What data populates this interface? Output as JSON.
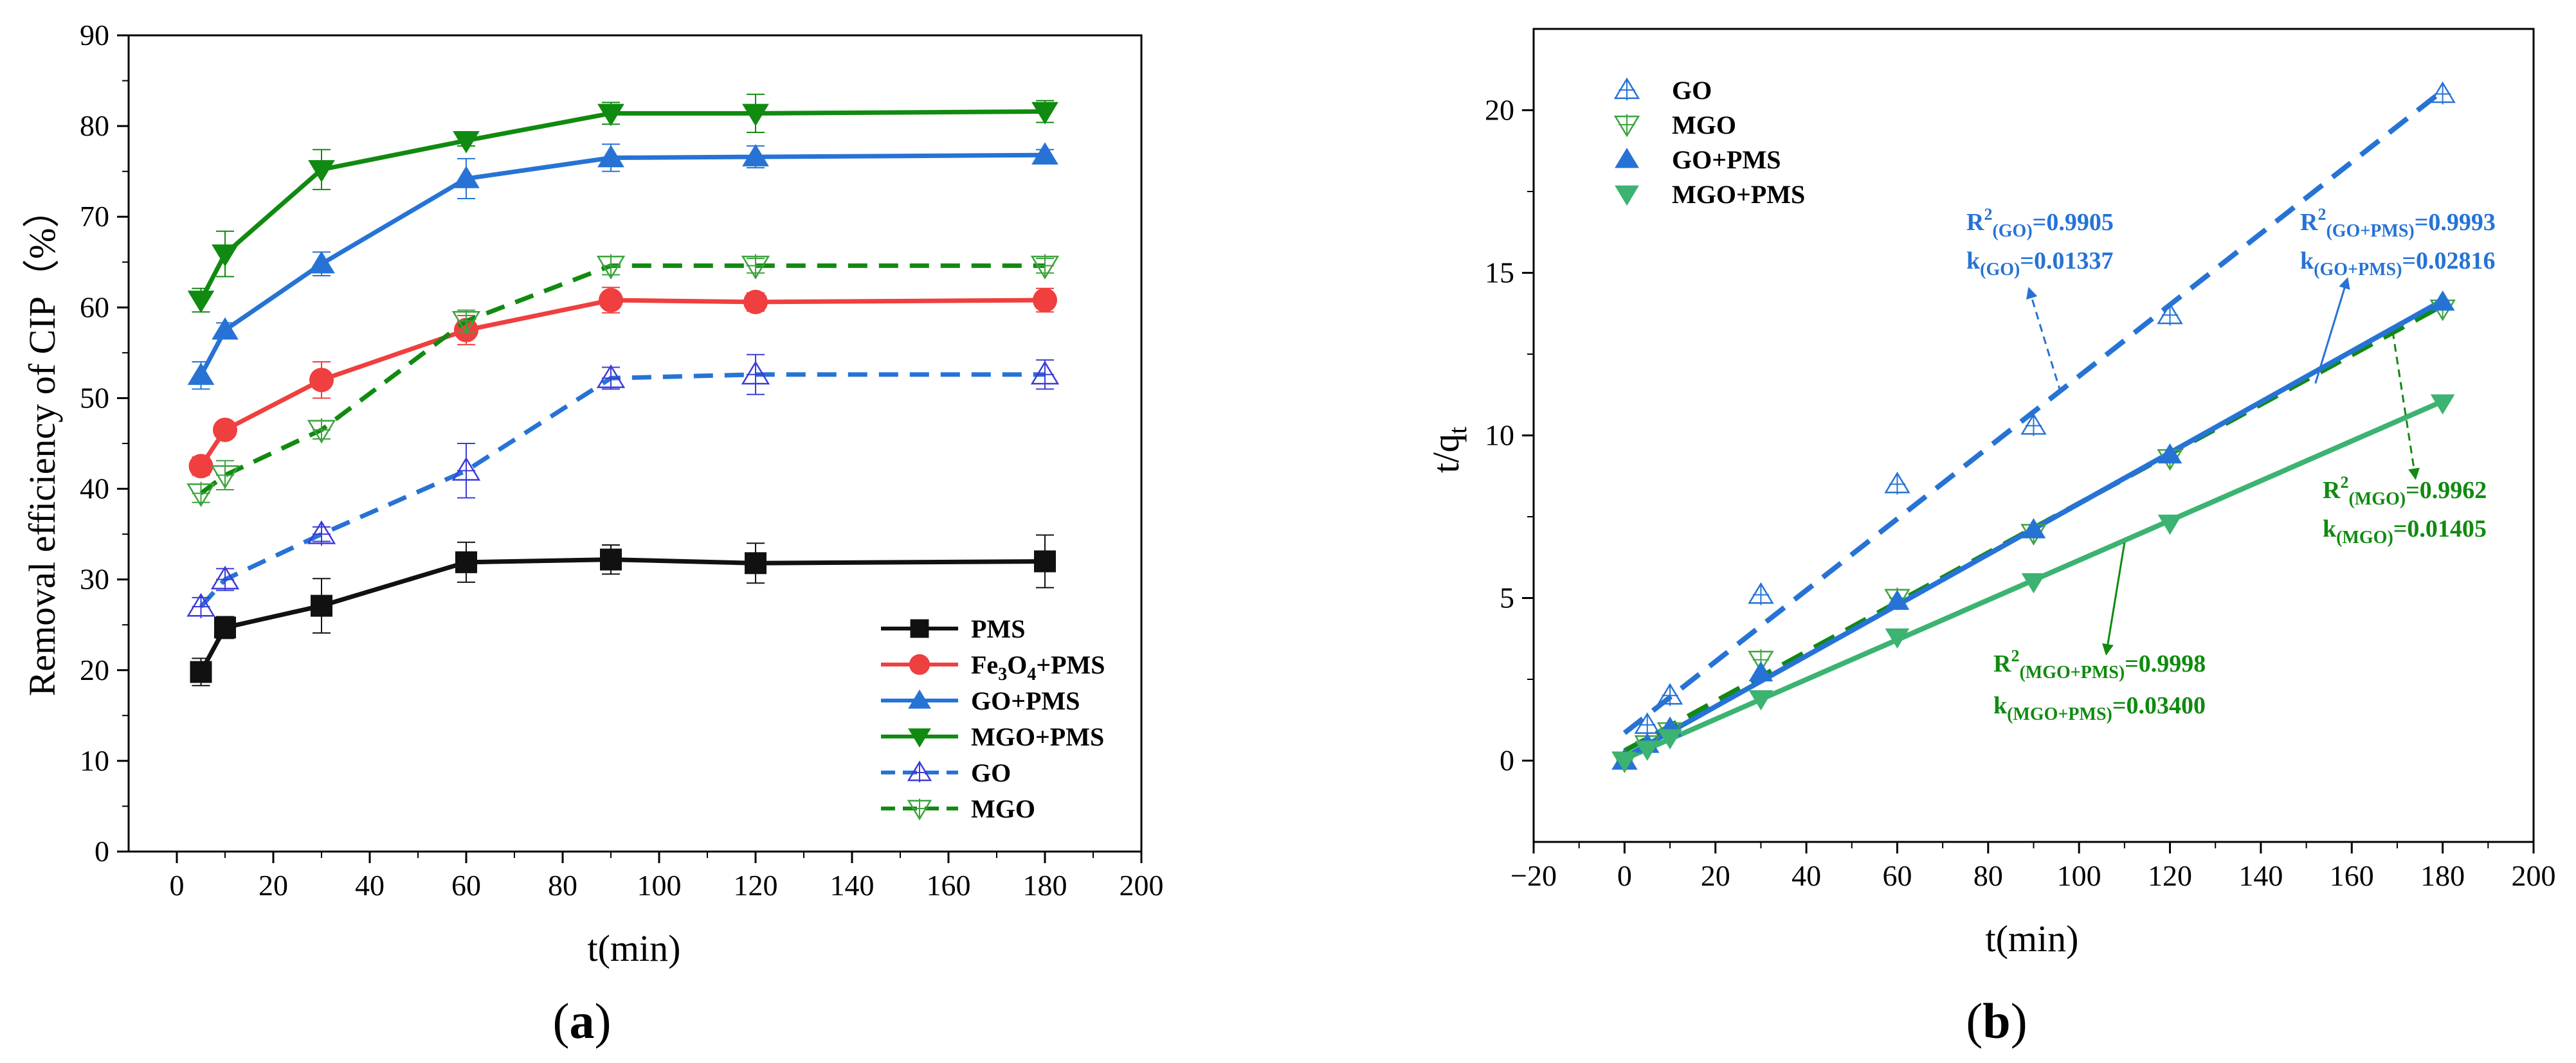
{
  "figure": {
    "panel_a_label": "(a)",
    "panel_b_label": "(b)",
    "panel_a_letter": "a",
    "panel_b_letter": "b"
  },
  "chart_data": [
    {
      "id": "a",
      "type": "line",
      "title": "",
      "xlabel": "t(min)",
      "ylabel": "Removal efficiency of CIP（%）",
      "xlim": [
        -10,
        200
      ],
      "ylim": [
        0,
        90
      ],
      "xticks": [
        0,
        20,
        40,
        60,
        80,
        100,
        120,
        140,
        160,
        180,
        200
      ],
      "yticks": [
        0,
        10,
        20,
        30,
        40,
        50,
        60,
        70,
        80,
        90
      ],
      "grid": false,
      "legend_position": "bottom-right",
      "x": [
        5,
        10,
        30,
        60,
        90,
        120,
        180
      ],
      "series": [
        {
          "name": "PMS",
          "label_main": "PMS",
          "color": "#111111",
          "marker": "square",
          "line": "solid",
          "values": [
            19.8,
            24.7,
            27.1,
            31.9,
            32.2,
            31.8,
            32.0
          ],
          "errors": [
            1.5,
            1.2,
            3.0,
            2.2,
            1.6,
            2.2,
            2.9
          ]
        },
        {
          "name": "Fe3O4+PMS",
          "label_main": "Fe",
          "label_sub1": "3",
          "label_mid": "O",
          "label_sub2": "4",
          "label_tail": "+PMS",
          "color": "#ef3f3f",
          "marker": "circle",
          "line": "solid",
          "values": [
            42.5,
            46.5,
            52.0,
            57.5,
            60.8,
            60.6,
            60.8
          ],
          "errors": [
            1.0,
            0.8,
            2.0,
            1.6,
            1.4,
            1.0,
            1.3
          ]
        },
        {
          "name": "GO+PMS",
          "label_main": "GO+PMS",
          "color": "#2673d5",
          "marker": "triangle-up",
          "line": "solid",
          "values": [
            52.5,
            57.5,
            64.8,
            74.2,
            76.5,
            76.6,
            76.8
          ],
          "errors": [
            1.5,
            0.8,
            1.3,
            2.2,
            1.5,
            1.2,
            0.6
          ]
        },
        {
          "name": "MGO+PMS",
          "label_main": "MGO+PMS",
          "color": "#108a10",
          "marker": "triangle-down",
          "line": "solid",
          "values": [
            60.8,
            65.9,
            75.2,
            78.4,
            81.4,
            81.4,
            81.6
          ],
          "errors": [
            1.3,
            2.5,
            2.2,
            0.6,
            1.2,
            2.1,
            1.2
          ]
        },
        {
          "name": "GO",
          "label_main": "GO",
          "color": "#3b3bd9",
          "line_color": "#2673d5",
          "marker": "triangle-up-open",
          "line": "dashed",
          "values": [
            27.0,
            30.0,
            35.0,
            42.0,
            52.2,
            52.6,
            52.6
          ],
          "errors": [
            1.0,
            1.2,
            0.8,
            3.0,
            1.2,
            2.2,
            1.6
          ]
        },
        {
          "name": "MGO",
          "label_main": "MGO",
          "color": "#3da33d",
          "line_color": "#108a10",
          "marker": "triangle-down-open",
          "line": "dashed",
          "values": [
            39.5,
            41.5,
            46.5,
            58.5,
            64.6,
            64.6,
            64.6
          ],
          "errors": [
            1.0,
            1.6,
            1.0,
            1.2,
            1.0,
            0.8,
            0.8
          ]
        }
      ]
    },
    {
      "id": "b",
      "type": "scatter",
      "title": "",
      "xlabel": "t(min)",
      "ylabel_main": "t/q",
      "ylabel_sub": "t",
      "xlim": [
        -20,
        200
      ],
      "ylim": [
        -2.5,
        22.5
      ],
      "xticks": [
        -20,
        0,
        20,
        40,
        60,
        80,
        100,
        120,
        140,
        160,
        180,
        200
      ],
      "yticks": [
        0,
        5,
        10,
        15,
        20
      ],
      "grid": false,
      "legend_position": "top-left",
      "series": [
        {
          "name": "GO",
          "color": "#2673d5",
          "marker": "triangle-up-open",
          "x": [
            0,
            5,
            10,
            30,
            60,
            90,
            120,
            180
          ],
          "y": [
            0,
            1.1,
            2.0,
            5.1,
            8.5,
            10.3,
            13.7,
            20.5
          ],
          "fit": {
            "x": [
              0,
              180
            ],
            "y": [
              0.85,
              20.6
            ],
            "style": "dashed",
            "color": "#2673d5"
          }
        },
        {
          "name": "MGO",
          "color": "#3da33d",
          "marker": "triangle-down-open",
          "x": [
            0,
            5,
            10,
            30,
            60,
            90,
            120,
            180
          ],
          "y": [
            0,
            0.5,
            0.9,
            3.1,
            5.0,
            7.0,
            9.3,
            13.9
          ],
          "fit": {
            "x": [
              0,
              180
            ],
            "y": [
              0.3,
              14.0
            ],
            "style": "dashed",
            "color": "#108a10"
          }
        },
        {
          "name": "GO+PMS",
          "color": "#2673d5",
          "marker": "triangle-up",
          "x": [
            0,
            5,
            10,
            30,
            60,
            90,
            120,
            180
          ],
          "y": [
            0,
            0.5,
            1.0,
            2.7,
            4.9,
            7.1,
            9.4,
            14.1
          ],
          "fit": {
            "x": [
              0,
              180
            ],
            "y": [
              0.1,
              14.15
            ],
            "style": "solid",
            "color": "#2673d5"
          }
        },
        {
          "name": "MGO+PMS",
          "color": "#3cb371",
          "marker": "triangle-down",
          "x": [
            0,
            5,
            10,
            30,
            60,
            90,
            120,
            180
          ],
          "y": [
            0,
            0.35,
            0.7,
            1.9,
            3.8,
            5.5,
            7.3,
            11.0
          ],
          "fit": {
            "x": [
              0,
              180
            ],
            "y": [
              0.05,
              11.05
            ],
            "style": "solid",
            "color": "#3cb371"
          }
        }
      ],
      "annotations": [
        {
          "id": "go",
          "color": "#2673d5",
          "r2_main": "R",
          "r2_sup": "2",
          "r2_sub": "(GO)",
          "r2_value": "=0.9905",
          "k_main": "k",
          "k_sub": "(GO)",
          "k_value": "=0.01337"
        },
        {
          "id": "gopms",
          "color": "#2673d5",
          "r2_main": "R",
          "r2_sup": "2",
          "r2_sub": "(GO+PMS)",
          "r2_value": "=0.9993",
          "k_main": "k",
          "k_sub": "(GO+PMS)",
          "k_value": "=0.02816"
        },
        {
          "id": "mgo",
          "color": "#108a10",
          "r2_main": "R",
          "r2_sup": "2",
          "r2_sub": "(MGO)",
          "r2_value": "=0.9962",
          "k_main": "k",
          "k_sub": "(MGO)",
          "k_value": "=0.01405"
        },
        {
          "id": "mgopms",
          "color": "#108a10",
          "r2_main": "R",
          "r2_sup": "2",
          "r2_sub": "(MGO+PMS)",
          "r2_value": "=0.9998",
          "k_main": "k",
          "k_sub": "(MGO+PMS)",
          "k_value": "=0.03400"
        }
      ]
    }
  ]
}
